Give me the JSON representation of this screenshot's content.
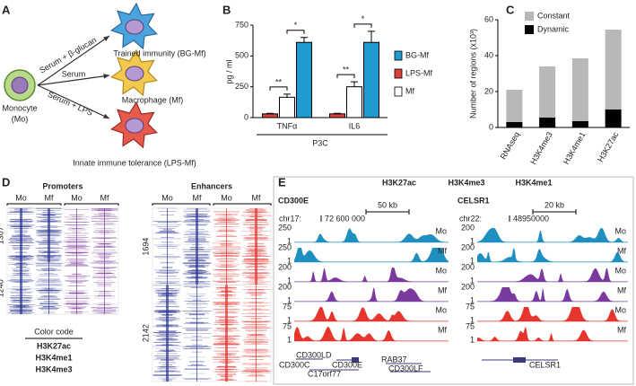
{
  "panel_labels": [
    "A",
    "B",
    "C",
    "D",
    "E"
  ],
  "panel_a": {
    "monocyte": [
      "Monocyte",
      "(Mo)"
    ],
    "treatments": [
      "Serum + β-glucan",
      "Serum",
      "Serum + LPS"
    ],
    "outcomes": [
      "Trained immunity (BG-Mf)",
      "Macrophage (Mf)",
      "Innate immune tolerance (LPS-Mf)"
    ]
  },
  "chart_data": [
    {
      "type": "bar",
      "y_label": "pg / ml",
      "x_label": "P3C",
      "categories": [
        "TNFα",
        "IL6"
      ],
      "series": [
        {
          "name": "BG-Mf",
          "color": "#1f9bcf",
          "values": [
            610,
            610
          ],
          "errors": [
            40,
            90
          ]
        },
        {
          "name": "LPS-Mf",
          "color": "#d9423a",
          "values": [
            30,
            30
          ],
          "errors": [
            5,
            5
          ]
        },
        {
          "name": "Mf",
          "color": "#ffffff",
          "values": [
            165,
            250
          ],
          "errors": [
            25,
            40
          ]
        }
      ],
      "ylim": [
        0,
        750
      ],
      "yticks": [
        0,
        250,
        500,
        750
      ],
      "legend": "right",
      "annotations": [
        "**",
        "*",
        "**",
        "*"
      ]
    },
    {
      "type": "stacked_bar",
      "y_label": "Number of regions (x10³)",
      "categories": [
        "RNAseq",
        "H3K4me3",
        "H3K4me1",
        "H3K27ac"
      ],
      "series": [
        {
          "name": "Constant",
          "color": "#b8b8b8",
          "values": [
            18,
            28.5,
            35,
            44.5
          ]
        },
        {
          "name": "Dynamic",
          "color": "#000000",
          "values": [
            3,
            5.5,
            3.5,
            10
          ]
        }
      ],
      "ylim": [
        0,
        60
      ],
      "yticks": [
        0,
        20,
        40,
        60
      ],
      "legend": "top-left"
    }
  ],
  "panel_d": {
    "promoters": {
      "title": "Promoters",
      "columns": [
        "Mo",
        "Mf",
        "Mo",
        "Mf"
      ],
      "clusters": [
        1307,
        1240
      ]
    },
    "enhancers": {
      "title": "Enhancers",
      "columns": [
        "Mo",
        "Mf",
        "Mo",
        "Mf"
      ],
      "clusters": [
        1694,
        2142
      ]
    },
    "color_code": {
      "title": "Color code",
      "entries": [
        {
          "name": "H3K27ac",
          "color": "#2b3592"
        },
        {
          "name": "H3K4me1",
          "color": "#e2312b"
        },
        {
          "name": "H3K4me3",
          "color": "#7c3b9a"
        }
      ]
    }
  },
  "panel_e": {
    "legend": [
      {
        "name": "H3K27ac",
        "color": "#1f8fbf"
      },
      {
        "name": "H3K4me3",
        "color": "#7b3a9e"
      },
      {
        "name": "H3K4me1",
        "color": "#e5352c"
      }
    ],
    "loci": [
      {
        "name": "CD300E",
        "scale": "50 kb",
        "chrom": "chr17:",
        "coordinate": "72 600 000",
        "tracks": [
          {
            "label": "Mo",
            "max": 250,
            "min": 1,
            "color": "#1f8fbf"
          },
          {
            "label": "Mf",
            "max": 250,
            "min": 1,
            "color": "#1f8fbf"
          },
          {
            "label": "Mo",
            "max": 200,
            "min": 1,
            "color": "#7b3a9e"
          },
          {
            "label": "Mf",
            "max": 200,
            "min": 1,
            "color": "#7b3a9e"
          },
          {
            "label": "Mo",
            "max": 75,
            "min": 1,
            "color": "#e5352c"
          },
          {
            "label": "Mf",
            "max": 75,
            "min": 1,
            "color": "#e5352c"
          }
        ],
        "genes": [
          "CD300LD",
          "CD300C",
          "CD300E",
          "C17orf77",
          "RAB37",
          "CD300LF"
        ]
      },
      {
        "name": "CELSR1",
        "scale": "20 kb",
        "chrom": "chr22:",
        "coordinate": "48950000",
        "tracks": [
          {
            "label": "Mo",
            "max": 200,
            "min": 1,
            "color": "#1f8fbf"
          },
          {
            "label": "Mf",
            "max": 200,
            "min": 1,
            "color": "#1f8fbf"
          },
          {
            "label": "Mo",
            "max": 200,
            "min": 1,
            "color": "#7b3a9e"
          },
          {
            "label": "Mf",
            "max": 200,
            "min": 1,
            "color": "#7b3a9e"
          },
          {
            "label": "Mo",
            "max": 75,
            "min": 1,
            "color": "#e5352c"
          },
          {
            "label": "Mf",
            "max": 75,
            "min": 1,
            "color": "#e5352c"
          }
        ],
        "genes": [
          "CELSR1"
        ]
      }
    ]
  }
}
